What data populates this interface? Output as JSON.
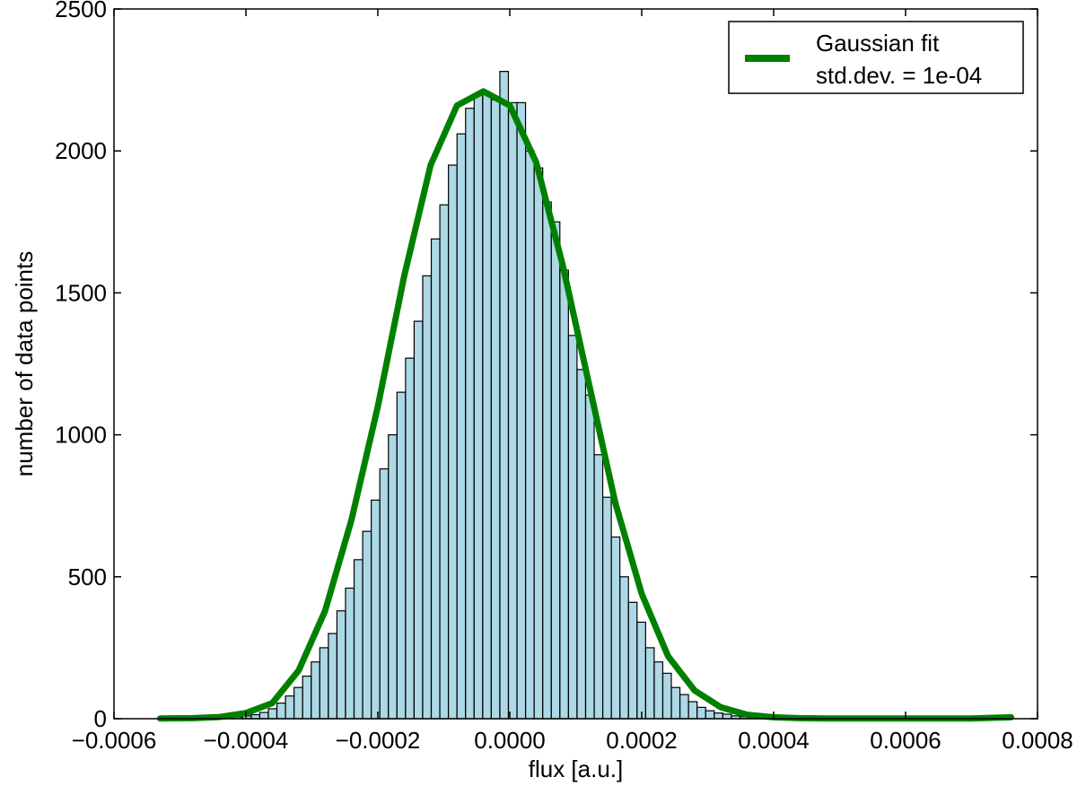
{
  "chart_data": {
    "type": "bar",
    "title": "",
    "xlabel": "flux [a.u.]",
    "ylabel": "number of data points",
    "xlim": [
      -0.0006,
      0.0008
    ],
    "ylim": [
      0,
      2500
    ],
    "xticks": [
      "−0.0006",
      "−0.0004",
      "−0.0002",
      "0.0000",
      "0.0002",
      "0.0004",
      "0.0006",
      "0.0008"
    ],
    "xtick_values": [
      -0.0006,
      -0.0004,
      -0.0002,
      0.0,
      0.0002,
      0.0004,
      0.0006,
      0.0008
    ],
    "yticks": [
      "0",
      "500",
      "1000",
      "1500",
      "2000",
      "2500"
    ],
    "ytick_values": [
      0,
      500,
      1000,
      1500,
      2000,
      2500
    ],
    "grid": false,
    "legend_position": "top-right",
    "histogram": {
      "bin_width": 1.29e-05,
      "bin_starts": [
        -0.000444,
        -0.000431,
        -0.000418,
        -0.000405,
        -0.000392,
        -0.000379,
        -0.000366,
        -0.000353,
        -0.00034,
        -0.000327,
        -0.000314,
        -0.000301,
        -0.000288,
        -0.000275,
        -0.000262,
        -0.000249,
        -0.000236,
        -0.000223,
        -0.00021,
        -0.000197,
        -0.000184,
        -0.000171,
        -0.000158,
        -0.000145,
        -0.000132,
        -0.000119,
        -0.000106,
        -9.3e-05,
        -8e-05,
        -6.7e-05,
        -5.4e-05,
        -4.1e-05,
        -2.8e-05,
        -1.5e-05,
        -2e-06,
        1.1e-05,
        2.4e-05,
        3.7e-05,
        5e-05,
        6.3e-05,
        7.6e-05,
        8.9e-05,
        0.000102,
        0.000115,
        0.000128,
        0.000141,
        0.000154,
        0.000167,
        0.00018,
        0.000193,
        0.000206,
        0.000219,
        0.000232,
        0.000245,
        0.000258,
        0.000271,
        0.000284,
        0.000297,
        0.00031,
        0.000323,
        0.000336,
        0.000349,
        0.000362,
        0.000375,
        0.000388,
        0.000401,
        0.000414,
        0.000427,
        0.00044
      ],
      "counts": [
        3,
        4,
        6,
        10,
        14,
        22,
        35,
        55,
        80,
        110,
        150,
        200,
        250,
        300,
        380,
        460,
        560,
        660,
        770,
        880,
        1000,
        1150,
        1270,
        1400,
        1560,
        1690,
        1810,
        1950,
        2060,
        2150,
        2200,
        2200,
        2180,
        2280,
        2170,
        2170,
        2000,
        1940,
        1820,
        1750,
        1580,
        1350,
        1230,
        1140,
        930,
        780,
        640,
        500,
        410,
        340,
        250,
        200,
        160,
        110,
        85,
        60,
        40,
        28,
        20,
        16,
        10,
        7,
        5,
        3,
        2,
        2,
        1,
        1,
        0
      ]
    },
    "series": [
      {
        "name": "Gaussian fit",
        "type": "line",
        "color": "#008000",
        "x": [
          -0.00053,
          -0.00048,
          -0.00044,
          -0.0004,
          -0.00036,
          -0.00032,
          -0.00028,
          -0.00024,
          -0.0002,
          -0.00016,
          -0.00012,
          -8e-05,
          -4e-05,
          0.0,
          4e-05,
          8e-05,
          0.00012,
          0.00016,
          0.0002,
          0.00024,
          0.00028,
          0.00032,
          0.00036,
          0.0004,
          0.00044,
          0.00048,
          0.00052,
          0.00058,
          0.00064,
          0.0007,
          0.00076
        ],
        "y": [
          1,
          2,
          6,
          20,
          55,
          170,
          380,
          700,
          1100,
          1560,
          1950,
          2160,
          2210,
          2160,
          1960,
          1600,
          1180,
          760,
          440,
          220,
          100,
          40,
          14,
          5,
          2,
          1,
          1,
          1,
          1,
          1,
          5
        ]
      }
    ],
    "legend": {
      "entries": [
        {
          "line1": "Gaussian fit",
          "line2": "std.dev. = 1e-04",
          "color": "#008000"
        }
      ]
    },
    "colors": {
      "bar_fill": "#add8e6",
      "bar_edge": "#000000",
      "fit_line": "#008000"
    }
  }
}
